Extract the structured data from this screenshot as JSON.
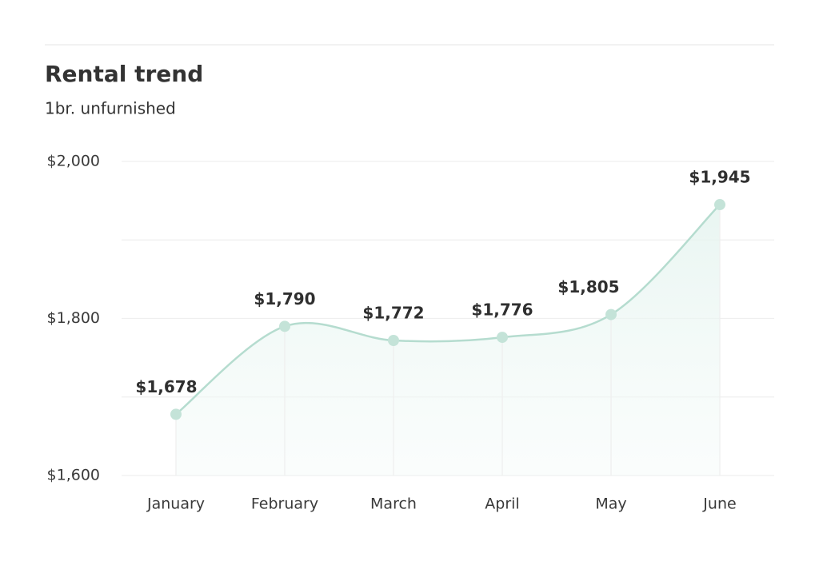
{
  "chart_data": {
    "type": "area",
    "title": "Rental trend",
    "subtitle": "1br. unfurnished",
    "categories": [
      "January",
      "February",
      "March",
      "April",
      "May",
      "June"
    ],
    "values": [
      1678,
      1790,
      1772,
      1776,
      1805,
      1945
    ],
    "value_labels": [
      "$1,678",
      "$1,790",
      "$1,772",
      "$1,776",
      "$1,805",
      "$1,945"
    ],
    "color": "#b5dccf",
    "ylim": [
      1600,
      2000
    ],
    "yticks": [
      {
        "value": 1600,
        "label": "$1,600"
      },
      {
        "value": 1700,
        "label": null
      },
      {
        "value": 1800,
        "label": "$1,800"
      },
      {
        "value": 1900,
        "label": null
      },
      {
        "value": 2000,
        "label": "$2,000"
      }
    ],
    "grid": true
  }
}
